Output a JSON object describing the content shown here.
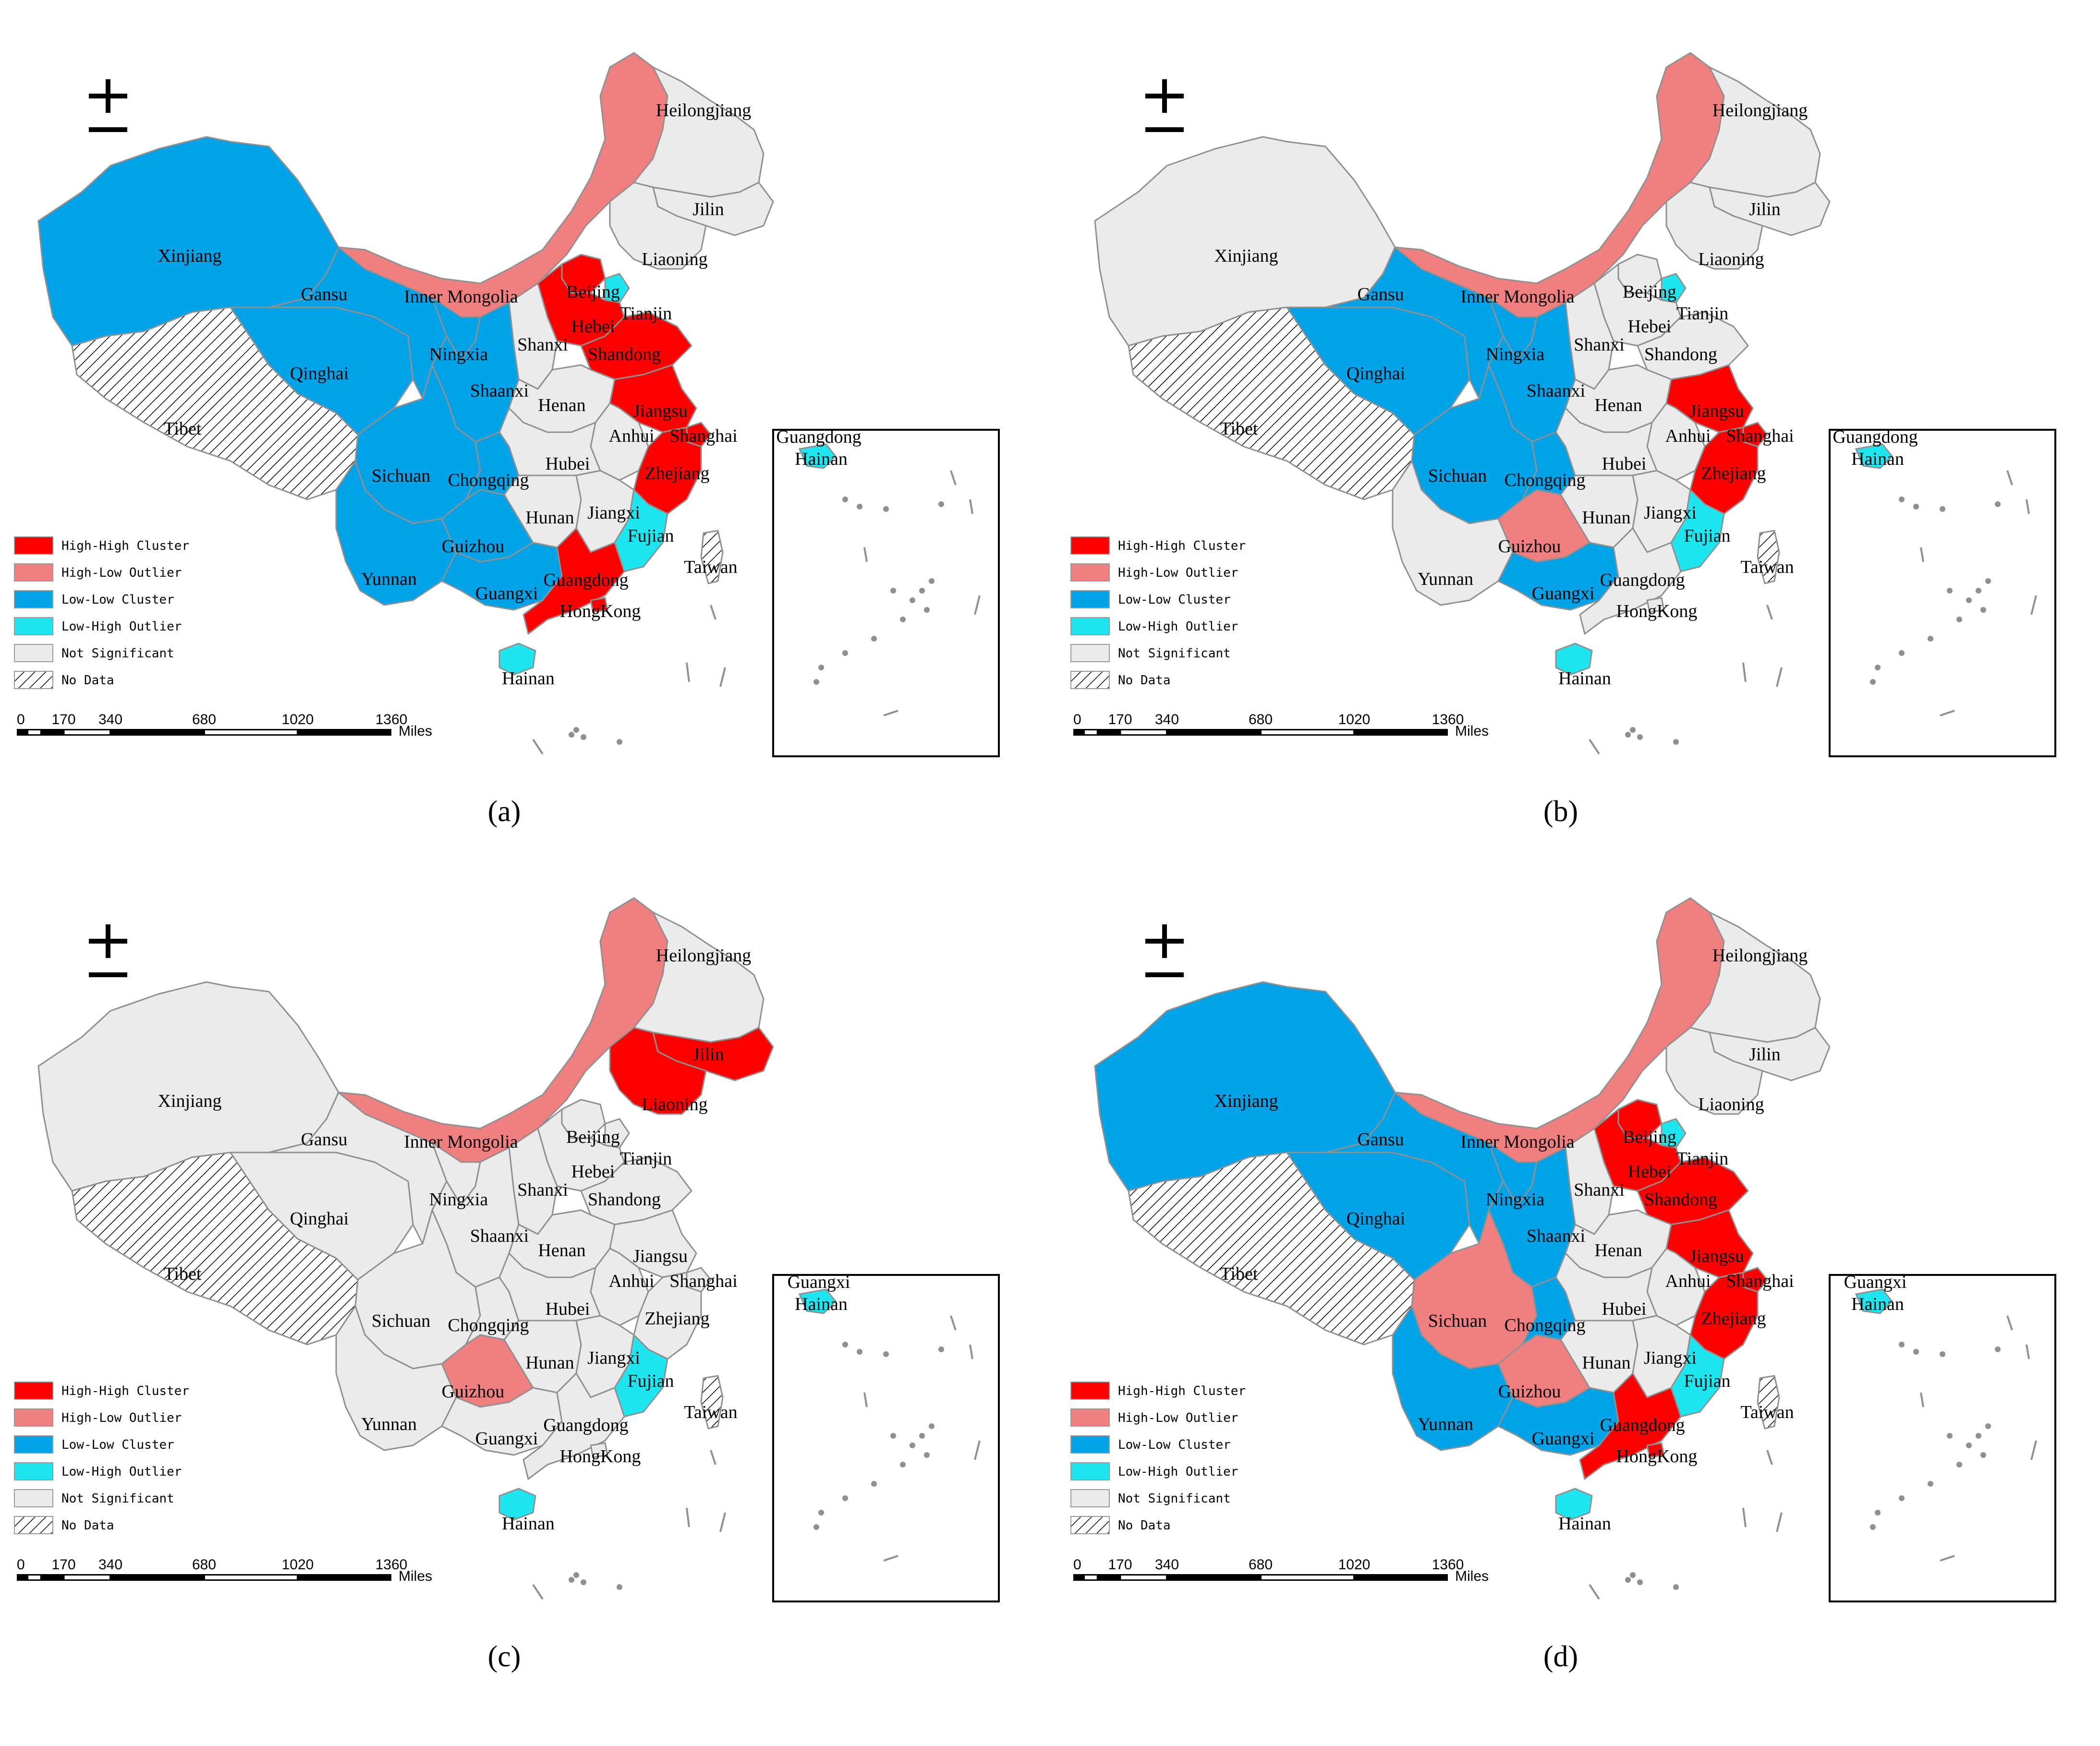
{
  "panels": [
    {
      "caption": "(a)",
      "regions": {
        "xinjiang": "LL",
        "tibet": "ND",
        "qinghai": "LL",
        "gansu": "LL",
        "innermongolia": "HL",
        "heilongjiang": "NS",
        "jilin": "NS",
        "liaoning": "NS",
        "beijing": "HH",
        "tianjin": "LH",
        "hebei": "HH",
        "shandong": "HH",
        "shanxi": "NS",
        "ningxia": "LL",
        "shaanxi": "LL",
        "henan": "NS",
        "jiangsu": "HH",
        "anhui": "NS",
        "shanghai": "HH",
        "sichuan": "LL",
        "chongqing": "LL",
        "hubei": "NS",
        "zhejiang": "HH",
        "hunan": "NS",
        "jiangxi": "NS",
        "guizhou": "LL",
        "yunnan": "LL",
        "guangxi": "LL",
        "fujian": "LH",
        "guangdong": "HH",
        "hongkong": "HH",
        "taiwan": "ND",
        "hainan": "LH"
      },
      "labels": [
        "Xinjiang",
        "Tibet",
        "Qinghai",
        "Gansu",
        "Inner Mongolia",
        "Heilongjiang",
        "Jilin",
        "Liaoning",
        "Beijing",
        "Tianjin",
        "Hebei",
        "Shandong",
        "Shanxi",
        "Ningxia",
        "Shaanxi",
        "Henan",
        "Jiangsu",
        "Anhui",
        "Shanghai",
        "Sichuan",
        "Chongqing",
        "Hubei",
        "Zhejiang",
        "Hunan",
        "Jiangxi",
        "Guizhou",
        "Yunnan",
        "Guangxi",
        "Fujian",
        "Guangdong",
        "HongKong",
        "Taiwan",
        "Hainan"
      ],
      "inset_labels": [
        "Guangdong",
        "Hainan"
      ]
    },
    {
      "caption": "(b)",
      "regions": {
        "xinjiang": "NS",
        "tibet": "ND",
        "qinghai": "LL",
        "gansu": "LL",
        "innermongolia": "HL",
        "heilongjiang": "NS",
        "jilin": "NS",
        "liaoning": "NS",
        "beijing": "NS",
        "tianjin": "LH",
        "hebei": "NS",
        "shandong": "NS",
        "shanxi": "NS",
        "ningxia": "LL",
        "shaanxi": "LL",
        "henan": "NS",
        "jiangsu": "HH",
        "anhui": "NS",
        "shanghai": "HH",
        "sichuan": "LL",
        "chongqing": "LL",
        "hubei": "NS",
        "zhejiang": "HH",
        "hunan": "NS",
        "jiangxi": "NS",
        "guizhou": "HL",
        "yunnan": "NS",
        "guangxi": "LL",
        "fujian": "LH",
        "guangdong": "NS",
        "hongkong": "NS",
        "taiwan": "ND",
        "hainan": "LH"
      },
      "labels": [
        "Xinjiang",
        "Tibet",
        "Qinghai",
        "Gansu",
        "Inner Mongolia",
        "Heilongjiang",
        "Jilin",
        "Liaoning",
        "Beijing",
        "Tianjin",
        "Hebei",
        "Shandong",
        "Shanxi",
        "Ningxia",
        "Shaanxi",
        "Henan",
        "Jiangsu",
        "Anhui",
        "Shanghai",
        "Sichuan",
        "Chongqing",
        "Hubei",
        "Zhejiang",
        "Hunan",
        "Jiangxi",
        "Guizhou",
        "Yunnan",
        "Guangxi",
        "Fujian",
        "Guangdong",
        "HongKong",
        "Taiwan",
        "Hainan"
      ],
      "inset_labels": [
        "Guangdong",
        "Hainan"
      ]
    },
    {
      "caption": "(c)",
      "regions": {
        "xinjiang": "NS",
        "tibet": "ND",
        "qinghai": "NS",
        "gansu": "NS",
        "innermongolia": "HL",
        "heilongjiang": "NS",
        "jilin": "HH",
        "liaoning": "HH",
        "beijing": "NS",
        "tianjin": "NS",
        "hebei": "NS",
        "shandong": "NS",
        "shanxi": "NS",
        "ningxia": "NS",
        "shaanxi": "NS",
        "henan": "NS",
        "jiangsu": "NS",
        "anhui": "NS",
        "shanghai": "NS",
        "sichuan": "NS",
        "chongqing": "NS",
        "hubei": "NS",
        "zhejiang": "NS",
        "hunan": "NS",
        "jiangxi": "NS",
        "guizhou": "HL",
        "yunnan": "NS",
        "guangxi": "NS",
        "fujian": "LH",
        "guangdong": "NS",
        "hongkong": "NS",
        "taiwan": "ND",
        "hainan": "LH"
      },
      "labels": [
        "Xinjiang",
        "Tibet",
        "Qinghai",
        "Gansu",
        "Inner Mongolia",
        "Heilongjiang",
        "Jilin",
        "Liaoning",
        "Beijing",
        "Tianjin",
        "Hebei",
        "Shandong",
        "Shanxi",
        "Ningxia",
        "Shaanxi",
        "Henan",
        "Jiangsu",
        "Anhui",
        "Shanghai",
        "Sichuan",
        "Chongqing",
        "Hubei",
        "Zhejiang",
        "Hunan",
        "Jiangxi",
        "Guizhou",
        "Yunnan",
        "Guangxi",
        "Fujian",
        "Guangdong",
        "HongKong",
        "Taiwan",
        "Hainan"
      ],
      "inset_labels": [
        "Guangxi",
        "Hainan"
      ]
    },
    {
      "caption": "(d)",
      "regions": {
        "xinjiang": "LL",
        "tibet": "ND",
        "qinghai": "LL",
        "gansu": "LL",
        "innermongolia": "HL",
        "heilongjiang": "NS",
        "jilin": "NS",
        "liaoning": "NS",
        "beijing": "HH",
        "tianjin": "LH",
        "hebei": "HH",
        "shandong": "HH",
        "shanxi": "NS",
        "ningxia": "LL",
        "shaanxi": "LL",
        "henan": "NS",
        "jiangsu": "HH",
        "anhui": "NS",
        "shanghai": "HH",
        "sichuan": "HL",
        "chongqing": "LL",
        "hubei": "NS",
        "zhejiang": "HH",
        "hunan": "NS",
        "jiangxi": "NS",
        "guizhou": "HL",
        "yunnan": "LL",
        "guangxi": "LL",
        "fujian": "LH",
        "guangdong": "HH",
        "hongkong": "HH",
        "taiwan": "ND",
        "hainan": "LH"
      },
      "labels": [
        "Xinjiang",
        "Tibet",
        "Qinghai",
        "Gansu",
        "Inner Mongolia",
        "Heilongjiang",
        "Jilin",
        "Liaoning",
        "Beijing",
        "Tianjin",
        "Hebei",
        "Shandong",
        "Shanxi",
        "Ningxia",
        "Shaanxi",
        "Henan",
        "Jiangsu",
        "Anhui",
        "Shanghai",
        "Sichuan",
        "Chongqing",
        "Hubei",
        "Zhejiang",
        "Hunan",
        "Jiangxi",
        "Guizhou",
        "Yunnan",
        "Guangxi",
        "Fujian",
        "Guangdong",
        "HongKong",
        "Taiwan",
        "Hainan"
      ],
      "inset_labels": [
        "Guangxi",
        "Hainan"
      ]
    }
  ],
  "legend": [
    {
      "key": "HH",
      "label": "High-High Cluster"
    },
    {
      "key": "HL",
      "label": "High-Low Outlier"
    },
    {
      "key": "LL",
      "label": "Low-Low Cluster"
    },
    {
      "key": "LH",
      "label": "Low-High Outlier"
    },
    {
      "key": "NS",
      "label": "Not Significant"
    },
    {
      "key": "ND",
      "label": "No Data"
    }
  ],
  "colors": {
    "HH": "#ff0000",
    "HL": "#f08080",
    "LL": "#00a2e8",
    "LH": "#1ee6f0",
    "NS": "#ebebeb",
    "ND": "hatch"
  },
  "scalebar": {
    "ticks": [
      "0",
      "170",
      "340",
      "680",
      "1020",
      "1360"
    ],
    "tick_values": [
      0,
      170,
      340,
      680,
      1020,
      1360
    ],
    "unit": "Miles"
  },
  "north_arrow_icon": "north-arrow-icon"
}
